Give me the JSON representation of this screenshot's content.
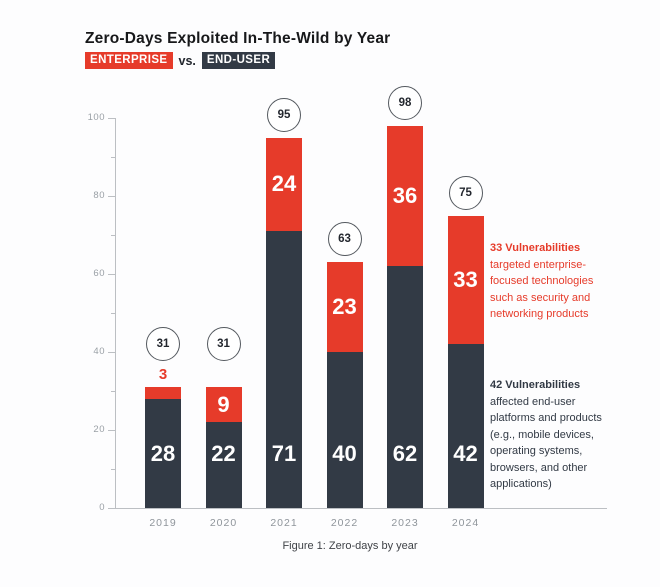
{
  "title": "Zero-Days Exploited In-The-Wild by Year",
  "subtitle": {
    "badge_enterprise": "ENTERPRISE",
    "vs": "vs.",
    "badge_end_user": "END-USER"
  },
  "colors": {
    "enterprise_red": "#e63b2a",
    "end_user_dark": "#323a45",
    "axis_gray": "#9aa0a6",
    "circle_border": "#54595f",
    "background": "#fdfdfe"
  },
  "chart_data": {
    "type": "bar",
    "stacked": true,
    "title": "Zero-Days Exploited In-The-Wild by Year",
    "categories": [
      "2019",
      "2020",
      "2021",
      "2022",
      "2023",
      "2024"
    ],
    "series": [
      {
        "name": "END-USER",
        "color": "#323a45",
        "values": [
          28,
          22,
          71,
          40,
          62,
          42
        ]
      },
      {
        "name": "ENTERPRISE",
        "color": "#e63b2a",
        "values": [
          3,
          9,
          24,
          23,
          36,
          33
        ]
      }
    ],
    "totals": [
      31,
      31,
      95,
      63,
      98,
      75
    ],
    "xlabel": "",
    "ylabel": "",
    "ylim": [
      0,
      100
    ],
    "yticks": [
      0,
      20,
      40,
      60,
      80,
      100
    ],
    "minor_tick_step": 10,
    "grid": false,
    "legend_position": "subtitle-badges"
  },
  "annotations": {
    "enterprise": {
      "heading": "33 Vulnerabilities",
      "body": "targeted enterprise-focused technologies such as security and networking products"
    },
    "end_user": {
      "heading": "42 Vulnerabilities",
      "body": "affected end-user platforms and products (e.g., mobile devices, operating systems, browsers, and other applications)"
    }
  },
  "caption": "Figure 1: Zero-days by year"
}
